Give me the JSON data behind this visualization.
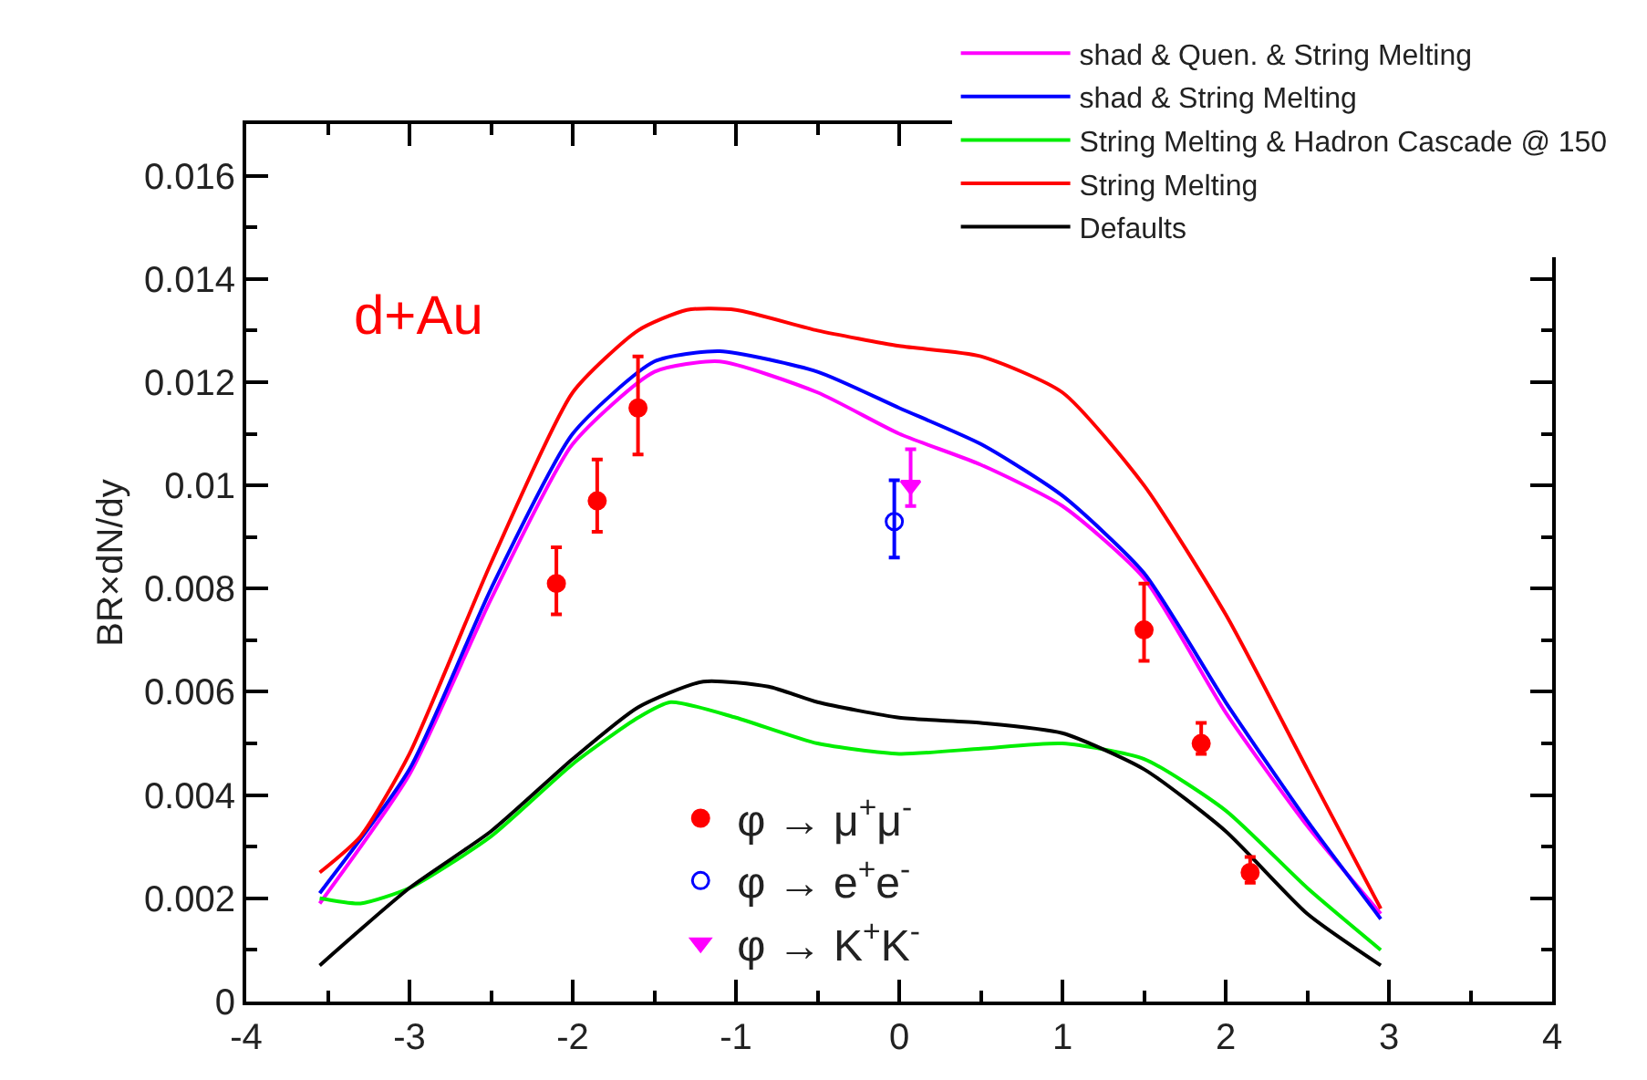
{
  "chart_data": {
    "type": "line",
    "ylabel": "BR×dN/dy",
    "annotations": [
      "d+Au"
    ],
    "xlim": [
      -4,
      4
    ],
    "xticks": [
      -4,
      -3,
      -2,
      -1,
      0,
      1,
      2,
      3,
      4
    ],
    "ylim": [
      0,
      0.017
    ],
    "yticks": [
      0,
      0.002,
      0.004,
      0.006,
      0.008,
      0.01,
      0.012,
      0.014,
      0.016
    ],
    "grid": false,
    "legend": "top right",
    "marker": "none",
    "line_style": "solid",
    "series": [
      {
        "name": "shad & Quen. & String Melting",
        "color": "#ff00ff",
        "x": [
          -3.55,
          -3,
          -2.5,
          -2,
          -1.5,
          -1.1,
          -0.5,
          0,
          0.5,
          1,
          1.5,
          2,
          2.5,
          2.95
        ],
        "values": [
          0.0019,
          0.0044,
          0.0078,
          0.0108,
          0.0122,
          0.0124,
          0.0118,
          0.011,
          0.0104,
          0.0096,
          0.0082,
          0.0056,
          0.0034,
          0.0017
        ]
      },
      {
        "name": "shad & String Melting",
        "color": "#0000ff",
        "x": [
          -3.55,
          -3,
          -2.5,
          -2,
          -1.5,
          -1.1,
          -0.5,
          0,
          0.5,
          1,
          1.5,
          2,
          2.5,
          2.95
        ],
        "values": [
          0.0021,
          0.0045,
          0.008,
          0.011,
          0.0124,
          0.0126,
          0.0122,
          0.0115,
          0.0108,
          0.0098,
          0.0083,
          0.0058,
          0.0035,
          0.0016
        ]
      },
      {
        "name": "String Melting & Hadron Cascade @ 150",
        "color": "#00ee00",
        "x": [
          -3.55,
          -3.3,
          -3,
          -2.5,
          -2,
          -1.6,
          -1.4,
          -1,
          -0.5,
          0,
          0.5,
          1,
          1.5,
          2,
          2.5,
          2.95
        ],
        "values": [
          0.002,
          0.0019,
          0.0022,
          0.0032,
          0.0046,
          0.0055,
          0.0058,
          0.0055,
          0.005,
          0.0048,
          0.0049,
          0.005,
          0.0047,
          0.0037,
          0.0022,
          0.001
        ]
      },
      {
        "name": "String Melting",
        "color": "#ff0000",
        "x": [
          -3.55,
          -3.3,
          -3,
          -2.5,
          -2,
          -1.6,
          -1.3,
          -1,
          -0.5,
          0,
          0.5,
          1,
          1.5,
          2,
          2.5,
          2.95
        ],
        "values": [
          0.0025,
          0.0032,
          0.0048,
          0.0085,
          0.0118,
          0.013,
          0.0134,
          0.0134,
          0.013,
          0.0127,
          0.0125,
          0.0118,
          0.01,
          0.0075,
          0.0045,
          0.0018
        ]
      },
      {
        "name": "Defaults",
        "color": "#000000",
        "x": [
          -3.55,
          -3,
          -2.5,
          -2,
          -1.6,
          -1.2,
          -0.8,
          -0.5,
          0,
          0.5,
          1,
          1.5,
          2,
          2.5,
          2.95
        ],
        "values": [
          0.0007,
          0.0022,
          0.0033,
          0.0047,
          0.0057,
          0.0062,
          0.0061,
          0.0058,
          0.0055,
          0.0054,
          0.0052,
          0.0045,
          0.0033,
          0.0017,
          0.0007
        ]
      },
      {
        "name": "φ → μ$^{+}$μ$^{-}$",
        "color": "#ff0000",
        "type": "scatter",
        "marker": "circle",
        "x": [
          -2.1,
          -1.85,
          -1.6,
          1.5,
          1.85,
          2.15
        ],
        "values": [
          0.0081,
          0.0097,
          0.0115,
          0.0072,
          0.005,
          0.0025
        ],
        "errors": [
          [
            0.0075,
            0.0088
          ],
          [
            0.0091,
            0.0105
          ],
          [
            0.0106,
            0.0125
          ],
          [
            0.0066,
            0.0081
          ],
          [
            0.0048,
            0.0054
          ],
          [
            0.0023,
            0.0028
          ]
        ]
      },
      {
        "name": "φ → e$^{+}$e$^{-}$",
        "color": "#0000ff",
        "type": "scatter",
        "marker": "circle-open",
        "x": [
          -0.03
        ],
        "values": [
          0.0093
        ],
        "errors": [
          [
            0.0086,
            0.0101
          ]
        ]
      },
      {
        "name": "φ → K$^{+}$K$^{-}$",
        "color": "#ff00ff",
        "type": "scatter",
        "marker": "triangle",
        "x": [
          0.07
        ],
        "values": [
          0.01
        ],
        "errors": [
          [
            0.0096,
            0.0107
          ]
        ]
      }
    ]
  }
}
